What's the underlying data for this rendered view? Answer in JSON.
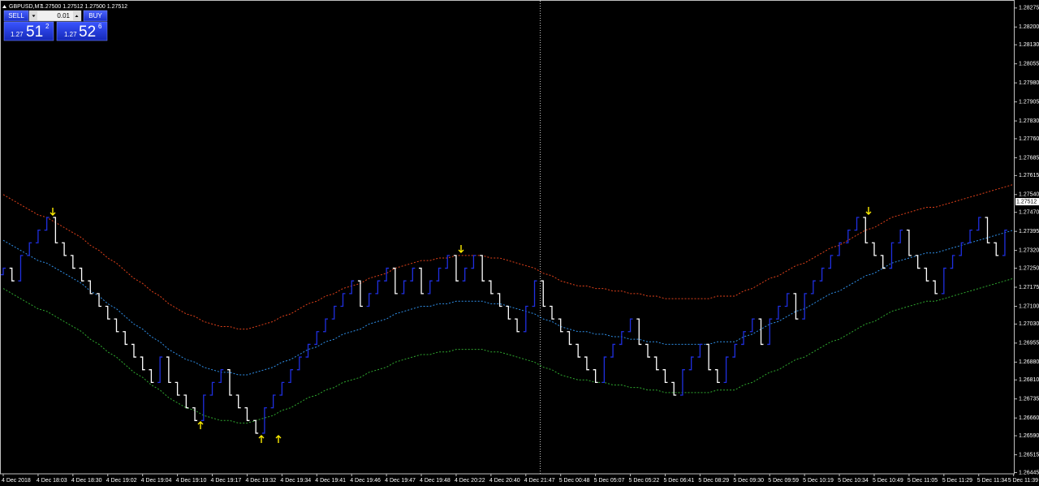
{
  "header": {
    "symbol": "GBPUSD,M7",
    "quote": "1.27500 1.27512 1.27500 1.27512"
  },
  "trade_panel": {
    "sell": "SELL",
    "buy": "BUY",
    "lot": "0.01",
    "bid_prefix": "1.27",
    "bid_big": "51",
    "bid_small": "2",
    "ask_prefix": "1.27",
    "ask_big": "52",
    "ask_small": "6"
  },
  "chart_data": {
    "type": "renko",
    "up_color": "#1f2fe0",
    "down_color": "#ffffff",
    "categories": [
      "4 Dec 2018",
      null,
      null,
      null,
      "4 Dec 18:03",
      null,
      null,
      null,
      "4 Dec 18:30",
      null,
      null,
      null,
      "4 Dec 19:02",
      null,
      null,
      null,
      "4 Dec 19:04",
      null,
      null,
      null,
      "4 Dec 19:10",
      null,
      null,
      null,
      "4 Dec 19:17",
      null,
      null,
      null,
      "4 Dec 19:32",
      null,
      null,
      null,
      "4 Dec 19:34",
      null,
      null,
      null,
      "4 Dec 19:41",
      null,
      null,
      null,
      "4 Dec 19:46",
      null,
      null,
      null,
      "4 Dec 19:47",
      null,
      null,
      null,
      "4 Dec 19:48",
      null,
      null,
      null,
      "4 Dec 20:22",
      null,
      null,
      null,
      "4 Dec 20:40",
      null,
      null,
      null,
      "4 Dec 21:47",
      null,
      null,
      null,
      "5 Dec 00:48",
      null,
      null,
      null,
      "5 Dec 05:07",
      null,
      null,
      null,
      "5 Dec 05:22",
      null,
      null,
      null,
      "5 Dec 06:41",
      null,
      null,
      null,
      "5 Dec 08:29",
      null,
      null,
      null,
      "5 Dec 09:30",
      null,
      null,
      null,
      "5 Dec 09:59",
      null,
      null,
      null,
      "5 Dec 10:19",
      null,
      null,
      null,
      "5 Dec 10:34",
      null,
      null,
      null,
      "5 Dec 10:49",
      null,
      null,
      null,
      "5 Dec 11:05",
      null,
      null,
      null,
      "5 Dec 11:29",
      null,
      null,
      null,
      "5 Dec 11:34",
      null,
      null,
      null,
      "5 Dec 11:39"
    ],
    "values": [
      1.2725,
      1.272,
      1.273,
      1.2735,
      1.274,
      1.2745,
      1.2735,
      1.273,
      1.2725,
      1.272,
      1.2715,
      1.271,
      1.2705,
      1.27,
      1.2695,
      1.269,
      1.2685,
      1.268,
      1.269,
      1.268,
      1.2675,
      1.267,
      1.2665,
      1.2675,
      1.268,
      1.2685,
      1.2675,
      1.267,
      1.2665,
      1.266,
      1.267,
      1.2675,
      1.268,
      1.2685,
      1.269,
      1.2695,
      1.27,
      1.2705,
      1.271,
      1.2715,
      1.272,
      1.271,
      1.2715,
      1.272,
      1.2725,
      1.2715,
      1.272,
      1.2725,
      1.2715,
      1.272,
      1.2725,
      1.273,
      1.272,
      1.2725,
      1.273,
      1.272,
      1.2715,
      1.271,
      1.2705,
      1.27,
      1.271,
      1.272,
      1.271,
      1.2705,
      1.27,
      1.2695,
      1.269,
      1.2685,
      1.268,
      1.269,
      1.2695,
      1.27,
      1.2705,
      1.2695,
      1.269,
      1.2685,
      1.268,
      1.2675,
      1.2685,
      1.269,
      1.2695,
      1.2685,
      1.268,
      1.269,
      1.2695,
      1.27,
      1.2705,
      1.2695,
      1.2705,
      1.271,
      1.2715,
      1.2705,
      1.2715,
      1.272,
      1.2725,
      1.273,
      1.2735,
      1.274,
      1.2745,
      1.2735,
      1.273,
      1.2725,
      1.2735,
      1.274,
      1.273,
      1.2725,
      1.272,
      1.2715,
      1.2725,
      1.273,
      1.2735,
      1.274,
      1.2745,
      1.2735,
      1.273,
      1.274,
      null
    ],
    "bands": [
      {
        "color": "#e0401a",
        "values": [
          1.2754,
          1.2752,
          1.275,
          1.2748,
          1.2746,
          1.2745,
          1.2743,
          1.2741,
          1.2739,
          1.2737,
          1.2734,
          1.2732,
          1.2729,
          1.2727,
          1.2724,
          1.2721,
          1.2719,
          1.2716,
          1.2714,
          1.2711,
          1.2709,
          1.2707,
          1.2706,
          1.2704,
          1.2703,
          1.2702,
          1.2702,
          1.2701,
          1.2701,
          1.2702,
          1.2703,
          1.2704,
          1.2706,
          1.2707,
          1.2709,
          1.2711,
          1.2712,
          1.2714,
          1.2715,
          1.2717,
          1.2718,
          1.2719,
          1.2721,
          1.2722,
          1.2723,
          1.2725,
          1.2726,
          1.2727,
          1.2728,
          1.2728,
          1.2729,
          1.2729,
          1.273,
          1.273,
          1.273,
          1.273,
          1.2729,
          1.2729,
          1.2728,
          1.2727,
          1.2726,
          1.2725,
          1.2723,
          1.2722,
          1.272,
          1.2719,
          1.2718,
          1.2718,
          1.2717,
          1.2717,
          1.2716,
          1.2716,
          1.2715,
          1.2715,
          1.2714,
          1.2714,
          1.2713,
          1.2713,
          1.2713,
          1.2713,
          1.2713,
          1.2713,
          1.2714,
          1.2714,
          1.2714,
          1.2716,
          1.2717,
          1.2719,
          1.2721,
          1.2722,
          1.2724,
          1.2726,
          1.2727,
          1.2729,
          1.2731,
          1.2733,
          1.2734,
          1.2736,
          1.2738,
          1.274,
          1.2741,
          1.2743,
          1.2745,
          1.2746,
          1.2747,
          1.2748,
          1.2749,
          1.2749,
          1.275,
          1.2751,
          1.2752,
          1.2753,
          1.2754,
          1.2755,
          1.2756,
          1.2757,
          1.2758
        ]
      },
      {
        "color": "#2f8fe8",
        "values": [
          1.2736,
          1.2734,
          1.2732,
          1.273,
          1.2728,
          1.2727,
          1.2725,
          1.2723,
          1.2721,
          1.2719,
          1.2716,
          1.2714,
          1.2711,
          1.2709,
          1.2706,
          1.2703,
          1.2701,
          1.2698,
          1.2696,
          1.2693,
          1.2691,
          1.2689,
          1.2688,
          1.2686,
          1.2685,
          1.2684,
          1.2684,
          1.2683,
          1.2683,
          1.2684,
          1.2685,
          1.2686,
          1.2688,
          1.2689,
          1.2691,
          1.2693,
          1.2694,
          1.2696,
          1.2697,
          1.2699,
          1.27,
          1.2701,
          1.2703,
          1.2704,
          1.2705,
          1.2707,
          1.2708,
          1.2709,
          1.271,
          1.271,
          1.2711,
          1.2711,
          1.2712,
          1.2712,
          1.2712,
          1.2712,
          1.2711,
          1.2711,
          1.271,
          1.2709,
          1.2708,
          1.2707,
          1.2705,
          1.2704,
          1.2702,
          1.2701,
          1.27,
          1.27,
          1.2699,
          1.2699,
          1.2698,
          1.2698,
          1.2697,
          1.2697,
          1.2696,
          1.2696,
          1.2695,
          1.2695,
          1.2695,
          1.2695,
          1.2695,
          1.2695,
          1.2696,
          1.2696,
          1.2696,
          1.2698,
          1.2699,
          1.2701,
          1.2703,
          1.2704,
          1.2706,
          1.2708,
          1.2709,
          1.2711,
          1.2713,
          1.2715,
          1.2716,
          1.2718,
          1.272,
          1.2722,
          1.2723,
          1.2725,
          1.2727,
          1.2728,
          1.2729,
          1.273,
          1.2731,
          1.2731,
          1.2732,
          1.2733,
          1.2734,
          1.2735,
          1.2736,
          1.2737,
          1.2738,
          1.2739,
          1.274
        ]
      },
      {
        "color": "#2fa82f",
        "values": [
          1.2717,
          1.2715,
          1.2713,
          1.2711,
          1.2709,
          1.2708,
          1.2706,
          1.2704,
          1.2702,
          1.27,
          1.2697,
          1.2695,
          1.2692,
          1.269,
          1.2687,
          1.2684,
          1.2682,
          1.2679,
          1.2677,
          1.2674,
          1.2672,
          1.267,
          1.2669,
          1.2667,
          1.2666,
          1.2665,
          1.2665,
          1.2664,
          1.2664,
          1.2665,
          1.2666,
          1.2667,
          1.2669,
          1.267,
          1.2672,
          1.2674,
          1.2675,
          1.2677,
          1.2678,
          1.268,
          1.2681,
          1.2682,
          1.2684,
          1.2685,
          1.2686,
          1.2688,
          1.2689,
          1.269,
          1.2691,
          1.2691,
          1.2692,
          1.2692,
          1.2693,
          1.2693,
          1.2693,
          1.2693,
          1.2692,
          1.2692,
          1.2691,
          1.269,
          1.2689,
          1.2688,
          1.2686,
          1.2685,
          1.2683,
          1.2682,
          1.2681,
          1.2681,
          1.268,
          1.268,
          1.2679,
          1.2679,
          1.2678,
          1.2678,
          1.2677,
          1.2677,
          1.2676,
          1.2676,
          1.2676,
          1.2676,
          1.2676,
          1.2676,
          1.2677,
          1.2677,
          1.2677,
          1.2679,
          1.268,
          1.2682,
          1.2684,
          1.2685,
          1.2687,
          1.2689,
          1.269,
          1.2692,
          1.2694,
          1.2696,
          1.2697,
          1.2699,
          1.2701,
          1.2703,
          1.2704,
          1.2706,
          1.2708,
          1.2709,
          1.271,
          1.2711,
          1.2712,
          1.2712,
          1.2713,
          1.2714,
          1.2715,
          1.2716,
          1.2717,
          1.2718,
          1.2719,
          1.272,
          1.2721
        ]
      }
    ],
    "current_price": 1.27512,
    "ylim": [
      1.2644,
      1.283
    ],
    "yticks": [
      1.28275,
      {
        "value": 1.282,
        "label": "1.28200"
      },
      {
        "value": 1.2813,
        "label": "1.28130"
      },
      1.28055,
      {
        "value": 1.2798,
        "label": "1.27980"
      },
      1.27905,
      {
        "value": 1.2783,
        "label": "1.27830"
      },
      {
        "value": 1.2776,
        "label": "1.27760"
      },
      1.27685,
      1.27615,
      {
        "value": 1.2754,
        "label": "1.27540"
      },
      {
        "value": 1.2747,
        "label": "1.27470"
      },
      1.27395,
      {
        "value": 1.2732,
        "label": "1.27320"
      },
      {
        "value": 1.2725,
        "label": "1.27250"
      },
      1.27175,
      {
        "value": 1.271,
        "label": "1.27100"
      },
      {
        "value": 1.2703,
        "label": "1.27030"
      },
      1.26955,
      {
        "value": 1.2688,
        "label": "1.26880"
      },
      {
        "value": 1.2681,
        "label": "1.26810"
      },
      1.26735,
      {
        "value": 1.2666,
        "label": "1.26660"
      },
      {
        "value": 1.2659,
        "label": "1.26590"
      },
      1.26515,
      1.26445
    ],
    "grid": false
  }
}
